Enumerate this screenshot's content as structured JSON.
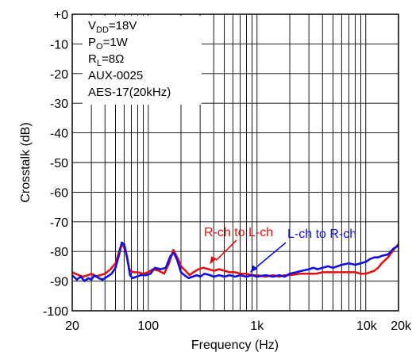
{
  "chart_data": {
    "type": "line",
    "xscale": "log",
    "xlim": [
      20,
      20000
    ],
    "ylim": [
      -100,
      0
    ],
    "xlabel": "Frequency (Hz)",
    "ylabel": "Crosstalk (dB)",
    "grid": true,
    "x_ticks": [
      {
        "value": 20,
        "label": "20"
      },
      {
        "value": 100,
        "label": "100"
      },
      {
        "value": 1000,
        "label": "1k"
      },
      {
        "value": 10000,
        "label": "10k"
      },
      {
        "value": 20000,
        "label": "20k"
      }
    ],
    "y_ticks": [
      {
        "value": 0,
        "label": "+0"
      },
      {
        "value": -10,
        "label": "-10"
      },
      {
        "value": -20,
        "label": "-20"
      },
      {
        "value": -30,
        "label": "-30"
      },
      {
        "value": -40,
        "label": "-40"
      },
      {
        "value": -50,
        "label": "-50"
      },
      {
        "value": -60,
        "label": "-60"
      },
      {
        "value": -70,
        "label": "-70"
      },
      {
        "value": -80,
        "label": "-80"
      },
      {
        "value": -90,
        "label": "-90"
      },
      {
        "value": -100,
        "label": "-100"
      }
    ],
    "conditions": [
      {
        "main": "V",
        "sub": "DD",
        "rest": "=18V"
      },
      {
        "main": "P",
        "sub": "O",
        "rest": "=1W"
      },
      {
        "main": "R",
        "sub": "L",
        "rest": "=8Ω"
      },
      {
        "main": "AUX-0025",
        "sub": "",
        "rest": ""
      },
      {
        "main": "AES-17(20kHz)",
        "sub": "",
        "rest": ""
      }
    ],
    "series": [
      {
        "name": "R-ch to L-ch",
        "color": "#e01010",
        "points": [
          [
            20,
            -87
          ],
          [
            23,
            -88
          ],
          [
            25,
            -88.5
          ],
          [
            28,
            -88
          ],
          [
            30,
            -87.5
          ],
          [
            33,
            -88.5
          ],
          [
            36,
            -88
          ],
          [
            40,
            -87.5
          ],
          [
            45,
            -86
          ],
          [
            50,
            -84
          ],
          [
            55,
            -79
          ],
          [
            58,
            -77.5
          ],
          [
            62,
            -80
          ],
          [
            67,
            -86
          ],
          [
            72,
            -87
          ],
          [
            80,
            -87
          ],
          [
            90,
            -87.5
          ],
          [
            100,
            -87
          ],
          [
            110,
            -86
          ],
          [
            125,
            -86.5
          ],
          [
            140,
            -87.5
          ],
          [
            155,
            -84
          ],
          [
            170,
            -79.5
          ],
          [
            185,
            -82
          ],
          [
            200,
            -85
          ],
          [
            220,
            -86.5
          ],
          [
            240,
            -88
          ],
          [
            260,
            -87
          ],
          [
            290,
            -86
          ],
          [
            320,
            -85.5
          ],
          [
            360,
            -86
          ],
          [
            400,
            -86.5
          ],
          [
            450,
            -86
          ],
          [
            500,
            -86.5
          ],
          [
            560,
            -87
          ],
          [
            630,
            -87
          ],
          [
            700,
            -87.5
          ],
          [
            800,
            -87.5
          ],
          [
            900,
            -88
          ],
          [
            1000,
            -88
          ],
          [
            1200,
            -88.5
          ],
          [
            1400,
            -88
          ],
          [
            1600,
            -88.5
          ],
          [
            1800,
            -88
          ],
          [
            2000,
            -88
          ],
          [
            2500,
            -87.5
          ],
          [
            3000,
            -87.5
          ],
          [
            3500,
            -87.5
          ],
          [
            4000,
            -87
          ],
          [
            5000,
            -87
          ],
          [
            6000,
            -87
          ],
          [
            7000,
            -87
          ],
          [
            8000,
            -87
          ],
          [
            9000,
            -87.5
          ],
          [
            10000,
            -87.5
          ],
          [
            11000,
            -87
          ],
          [
            12000,
            -86.5
          ],
          [
            13000,
            -85.5
          ],
          [
            14000,
            -84
          ],
          [
            16000,
            -82
          ],
          [
            18000,
            -79.5
          ],
          [
            20000,
            -77.5
          ]
        ]
      },
      {
        "name": "L-ch to R-ch",
        "color": "#1010e0",
        "points": [
          [
            20,
            -88
          ],
          [
            22,
            -89.5
          ],
          [
            24,
            -88.5
          ],
          [
            26,
            -90
          ],
          [
            28,
            -89
          ],
          [
            30,
            -89.5
          ],
          [
            32,
            -88
          ],
          [
            35,
            -89
          ],
          [
            38,
            -89.5
          ],
          [
            42,
            -88.5
          ],
          [
            46,
            -87.5
          ],
          [
            50,
            -85.5
          ],
          [
            54,
            -81
          ],
          [
            57,
            -77
          ],
          [
            60,
            -77.5
          ],
          [
            64,
            -82
          ],
          [
            68,
            -88
          ],
          [
            72,
            -89
          ],
          [
            78,
            -88.5
          ],
          [
            85,
            -88
          ],
          [
            95,
            -88
          ],
          [
            105,
            -87.5
          ],
          [
            115,
            -85.5
          ],
          [
            130,
            -86
          ],
          [
            145,
            -85.5
          ],
          [
            160,
            -81.5
          ],
          [
            172,
            -80.5
          ],
          [
            185,
            -83
          ],
          [
            200,
            -87
          ],
          [
            215,
            -88
          ],
          [
            235,
            -89
          ],
          [
            255,
            -88.5
          ],
          [
            280,
            -88
          ],
          [
            300,
            -88.5
          ],
          [
            330,
            -87.5
          ],
          [
            370,
            -88
          ],
          [
            400,
            -88.5
          ],
          [
            450,
            -88
          ],
          [
            500,
            -88.5
          ],
          [
            560,
            -88
          ],
          [
            630,
            -88.5
          ],
          [
            700,
            -88
          ],
          [
            800,
            -88.5
          ],
          [
            900,
            -88
          ],
          [
            1000,
            -88.5
          ],
          [
            1200,
            -88
          ],
          [
            1400,
            -88.5
          ],
          [
            1600,
            -88
          ],
          [
            1800,
            -88.5
          ],
          [
            2000,
            -87.5
          ],
          [
            2300,
            -87
          ],
          [
            2600,
            -86.5
          ],
          [
            3000,
            -86
          ],
          [
            3300,
            -85.5
          ],
          [
            3600,
            -86
          ],
          [
            4000,
            -85.5
          ],
          [
            4500,
            -85
          ],
          [
            5000,
            -85.5
          ],
          [
            5500,
            -85
          ],
          [
            6000,
            -84.5
          ],
          [
            7000,
            -84
          ],
          [
            8000,
            -84.5
          ],
          [
            9000,
            -84
          ],
          [
            10000,
            -83.5
          ],
          [
            11000,
            -82.5
          ],
          [
            12000,
            -82
          ],
          [
            13000,
            -82
          ],
          [
            14000,
            -81.5
          ],
          [
            16000,
            -81
          ],
          [
            18000,
            -79
          ],
          [
            20000,
            -78
          ]
        ]
      }
    ],
    "labels": [
      {
        "text": "R-ch to L-ch",
        "color": "#e01010",
        "anchor_x": 420,
        "anchor_y": -83
      },
      {
        "text": "L-ch to R-ch",
        "color": "#1010e0",
        "anchor_x": 870,
        "anchor_y": -87
      }
    ]
  }
}
